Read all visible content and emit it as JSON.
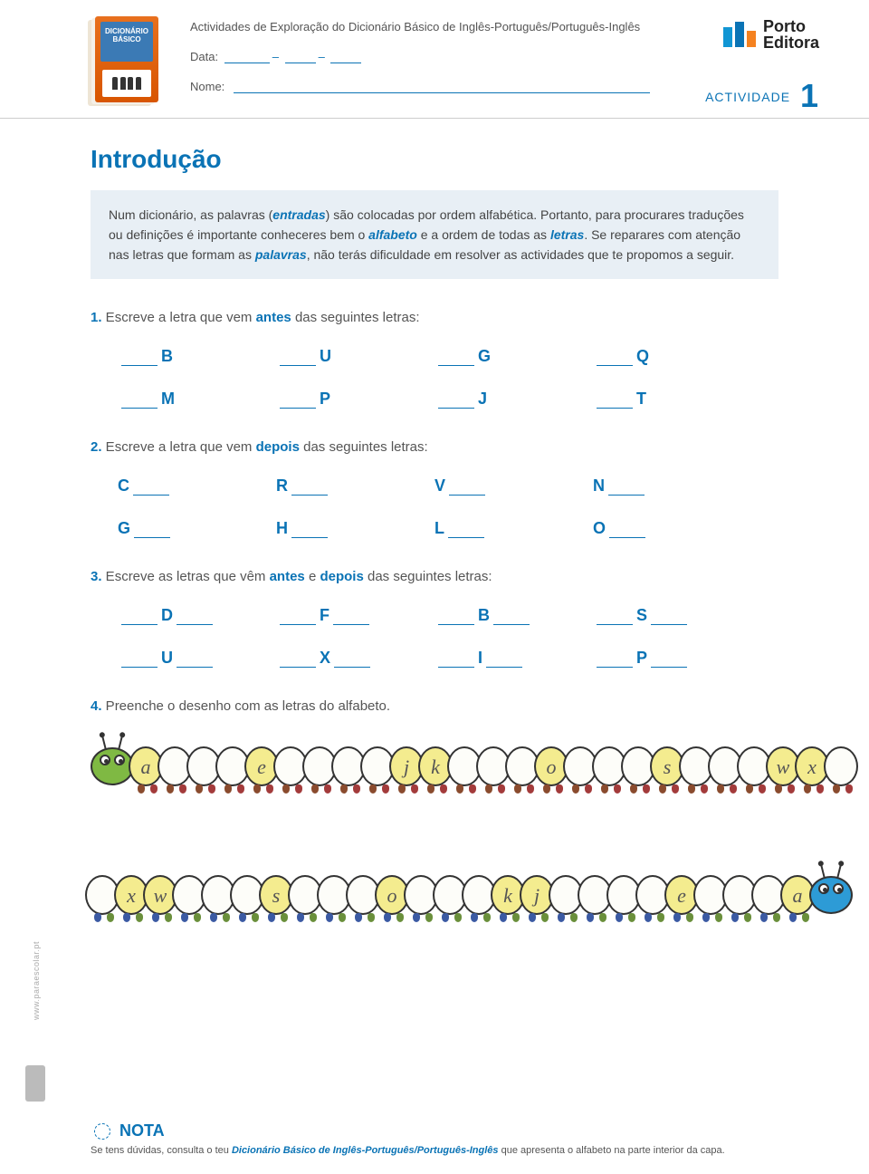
{
  "header": {
    "subtitle": "Actividades de Exploração do Dicionário Básico de Inglês-Português/Português-Inglês",
    "data_label": "Data:",
    "nome_label": "Nome:",
    "book_title": "DICIONÁRIO BÁSICO",
    "logo_text_1": "Porto",
    "logo_text_2": "Editora",
    "activity_label": "ACTIVIDADE",
    "activity_number": "1"
  },
  "title": "Introdução",
  "intro": {
    "p1a": "Num dicionário, as palavras (",
    "p1b": "entradas",
    "p1c": ") são colocadas por ordem alfabética. Portanto, para procurares traduções ou definições é importante conheceres bem o ",
    "p1d": "alfabeto",
    "p1e": " e a ordem de todas as ",
    "p1f": "letras",
    "p1g": ". Se reparares com atenção nas letras que formam as ",
    "p1h": "palavras",
    "p1i": ", não terás dificuldade em resolver as actividades que te propomos a seguir."
  },
  "ex1": {
    "num": "1.",
    "text_a": " Escreve a letra que vem ",
    "em": "antes",
    "text_b": " das seguintes letras:",
    "letters": [
      "B",
      "U",
      "G",
      "Q",
      "M",
      "P",
      "J",
      "T"
    ]
  },
  "ex2": {
    "num": "2.",
    "text_a": " Escreve a letra que vem ",
    "em": "depois",
    "text_b": " das seguintes letras:",
    "letters": [
      "C",
      "R",
      "V",
      "N",
      "G",
      "H",
      "L",
      "O"
    ]
  },
  "ex3": {
    "num": "3.",
    "text_a": " Escreve as letras que vêm ",
    "em1": "antes",
    "mid": " e ",
    "em2": "depois",
    "text_b": " das seguintes letras:",
    "letters": [
      "D",
      "F",
      "B",
      "S",
      "U",
      "X",
      "I",
      "P"
    ]
  },
  "ex4": {
    "num": "4.",
    "text": " Preenche o desenho com as letras do alfabeto."
  },
  "cat1_segments": [
    {
      "c": "yellow",
      "t": "a"
    },
    {
      "c": "white",
      "t": ""
    },
    {
      "c": "white",
      "t": ""
    },
    {
      "c": "white",
      "t": ""
    },
    {
      "c": "yellow",
      "t": "e"
    },
    {
      "c": "white",
      "t": ""
    },
    {
      "c": "white",
      "t": ""
    },
    {
      "c": "white",
      "t": ""
    },
    {
      "c": "white",
      "t": ""
    },
    {
      "c": "yellow",
      "t": "j"
    },
    {
      "c": "yellow",
      "t": "k"
    },
    {
      "c": "white",
      "t": ""
    },
    {
      "c": "white",
      "t": ""
    },
    {
      "c": "white",
      "t": ""
    },
    {
      "c": "yellow",
      "t": "o"
    },
    {
      "c": "white",
      "t": ""
    },
    {
      "c": "white",
      "t": ""
    },
    {
      "c": "white",
      "t": ""
    },
    {
      "c": "yellow",
      "t": "s"
    },
    {
      "c": "white",
      "t": ""
    },
    {
      "c": "white",
      "t": ""
    },
    {
      "c": "white",
      "t": ""
    },
    {
      "c": "yellow",
      "t": "w"
    },
    {
      "c": "yellow",
      "t": "x"
    },
    {
      "c": "white",
      "t": ""
    }
  ],
  "cat2_segments": [
    {
      "c": "white",
      "t": ""
    },
    {
      "c": "yellow",
      "t": "x"
    },
    {
      "c": "yellow",
      "t": "w"
    },
    {
      "c": "white",
      "t": ""
    },
    {
      "c": "white",
      "t": ""
    },
    {
      "c": "white",
      "t": ""
    },
    {
      "c": "yellow",
      "t": "s"
    },
    {
      "c": "white",
      "t": ""
    },
    {
      "c": "white",
      "t": ""
    },
    {
      "c": "white",
      "t": ""
    },
    {
      "c": "yellow",
      "t": "o"
    },
    {
      "c": "white",
      "t": ""
    },
    {
      "c": "white",
      "t": ""
    },
    {
      "c": "white",
      "t": ""
    },
    {
      "c": "yellow",
      "t": "k"
    },
    {
      "c": "yellow",
      "t": "j"
    },
    {
      "c": "white",
      "t": ""
    },
    {
      "c": "white",
      "t": ""
    },
    {
      "c": "white",
      "t": ""
    },
    {
      "c": "white",
      "t": ""
    },
    {
      "c": "yellow",
      "t": "e"
    },
    {
      "c": "white",
      "t": ""
    },
    {
      "c": "white",
      "t": ""
    },
    {
      "c": "white",
      "t": ""
    },
    {
      "c": "yellow",
      "t": "a"
    }
  ],
  "side_url": "www.paraescolar.pt",
  "note": {
    "title": "NOTA",
    "text_a": "Se tens dúvidas, consulta o teu ",
    "bold": "Dicionário Básico de Inglês-Português/Português-Inglês",
    "text_b": " que apresenta o alfabeto na parte interior da capa."
  },
  "colors": {
    "accent": "#0a73b5",
    "intro_bg": "#e8eff5",
    "seg_yellow": "#f4ec8f",
    "seg_white": "#fdfdf9",
    "head_green": "#7fb943",
    "head_blue": "#2d9bd6"
  }
}
